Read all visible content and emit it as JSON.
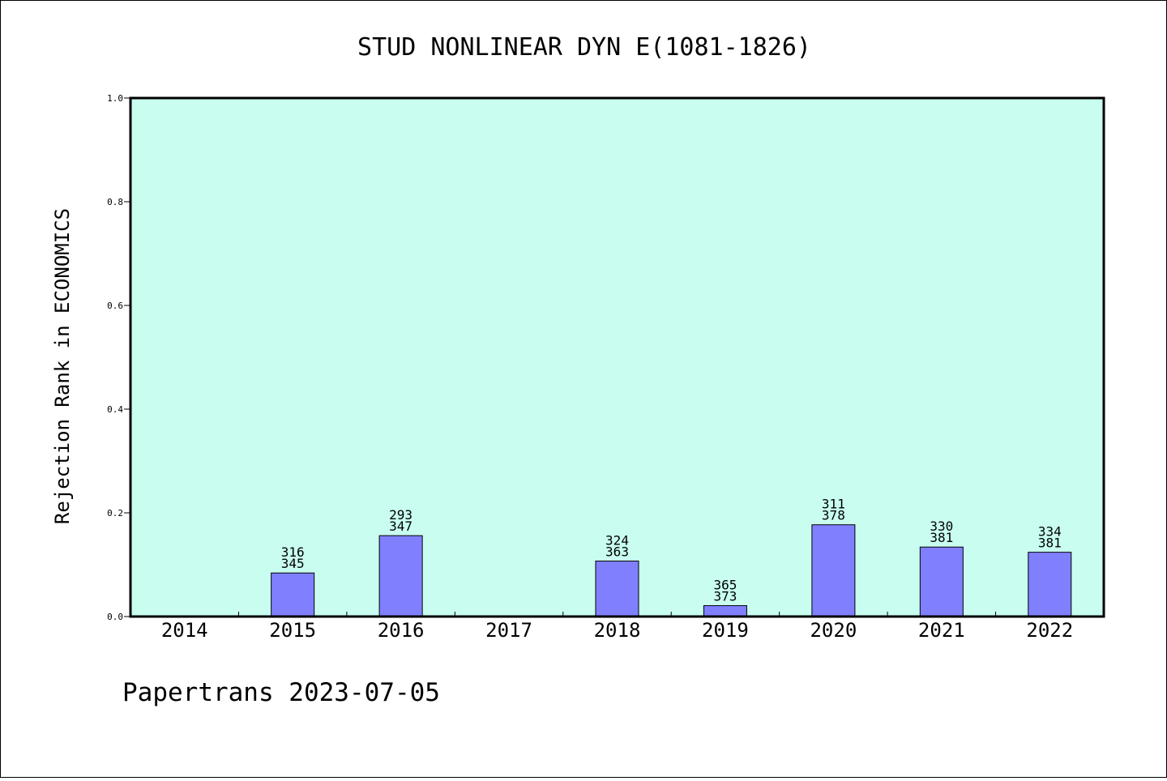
{
  "footer": "Papertrans 2023-07-05",
  "chart_data": {
    "type": "bar",
    "title": "STUD NONLINEAR DYN E(1081-1826)",
    "ylabel": "Rejection Rank in ECONOMICS",
    "xlabel": "",
    "ylim": [
      0,
      1.0
    ],
    "yticks": [
      "0.0",
      "0.2",
      "0.4",
      "0.6",
      "0.8",
      "1.0"
    ],
    "categories": [
      "2014",
      "2015",
      "2016",
      "2017",
      "2018",
      "2019",
      "2020",
      "2021",
      "2022"
    ],
    "values": [
      0,
      0.084,
      0.156,
      0,
      0.107,
      0.021,
      0.177,
      0.134,
      0.124
    ],
    "labels": [
      [
        "",
        ""
      ],
      [
        "316",
        "345"
      ],
      [
        "293",
        "347"
      ],
      [
        "",
        ""
      ],
      [
        "324",
        "363"
      ],
      [
        "365",
        "373"
      ],
      [
        "311",
        "378"
      ],
      [
        "330",
        "381"
      ],
      [
        "334",
        "381"
      ]
    ],
    "grid": false,
    "colors": {
      "plot_bg": "#c8fdf0",
      "bar": "#8080ff",
      "bar_edge": "#000000"
    }
  }
}
